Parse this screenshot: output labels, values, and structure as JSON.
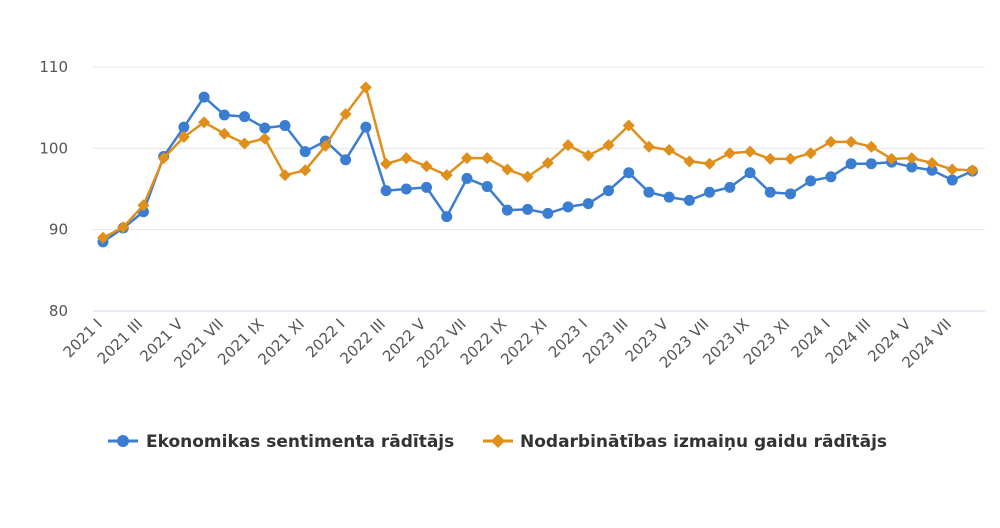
{
  "chart_data": {
    "type": "line",
    "title": "",
    "xlabel": "",
    "ylabel": "",
    "ylim": [
      80,
      110
    ],
    "yticks": [
      80,
      90,
      100,
      110
    ],
    "grid": true,
    "legend_position": "bottom",
    "x": [
      "2021 I",
      "2021 II",
      "2021 III",
      "2021 IV",
      "2021 V",
      "2021 VI",
      "2021 VII",
      "2021 VIII",
      "2021 IX",
      "2021 X",
      "2021 XI",
      "2021 XII",
      "2022 I",
      "2022 II",
      "2022 III",
      "2022 IV",
      "2022 V",
      "2022 VI",
      "2022 VII",
      "2022 VIII",
      "2022 IX",
      "2022 X",
      "2022 XI",
      "2022 XII",
      "2023 I",
      "2023 II",
      "2023 III",
      "2023 IV",
      "2023 V",
      "2023 VI",
      "2023 VII",
      "2023 VIII",
      "2023 IX",
      "2023 X",
      "2023 XI",
      "2023 XII",
      "2024 I",
      "2024 II",
      "2024 III",
      "2024 IV",
      "2024 V",
      "2024 VI",
      "2024 VII",
      "2024 VIII"
    ],
    "x_tick_labels": [
      "2021 I",
      "2021 III",
      "2021 V",
      "2021 VII",
      "2021 IX",
      "2021 XI",
      "2022 I",
      "2022 III",
      "2022 V",
      "2022 VII",
      "2022 IX",
      "2022 XI",
      "2023 I",
      "2023 III",
      "2023 V",
      "2023 VII",
      "2023 IX",
      "2023 XI",
      "2024 I",
      "2024 III",
      "2024 V",
      "2024 VII"
    ],
    "series": [
      {
        "name": "Ekonomikas sentimenta rādītājs",
        "color": "#3a7dd1",
        "marker": "circle",
        "values": [
          88.5,
          90.2,
          92.2,
          99.0,
          102.6,
          106.3,
          104.1,
          103.9,
          102.5,
          102.8,
          99.6,
          100.9,
          98.6,
          102.6,
          94.8,
          95.0,
          95.2,
          91.6,
          96.3,
          95.3,
          92.4,
          92.5,
          92.0,
          92.8,
          93.2,
          94.8,
          97.0,
          94.6,
          94.0,
          93.6,
          94.6,
          95.2,
          97.0,
          94.6,
          94.4,
          96.0,
          96.5,
          98.1,
          98.1,
          98.3,
          97.7,
          97.3,
          96.1,
          97.2
        ]
      },
      {
        "name": "Nodarbinātības izmaiņu gaidu rādītājs",
        "color": "#df8f1a",
        "marker": "diamond",
        "values": [
          89.0,
          90.3,
          93.0,
          98.8,
          101.4,
          103.2,
          101.8,
          100.6,
          101.2,
          96.7,
          97.3,
          100.3,
          104.2,
          107.5,
          98.1,
          98.8,
          97.8,
          96.7,
          98.8,
          98.8,
          97.4,
          96.5,
          98.2,
          100.4,
          99.1,
          100.4,
          102.8,
          100.2,
          99.8,
          98.4,
          98.1,
          99.4,
          99.6,
          98.7,
          98.7,
          99.4,
          100.8,
          100.8,
          100.2,
          98.7,
          98.8,
          98.2,
          97.4,
          97.3
        ]
      }
    ]
  }
}
